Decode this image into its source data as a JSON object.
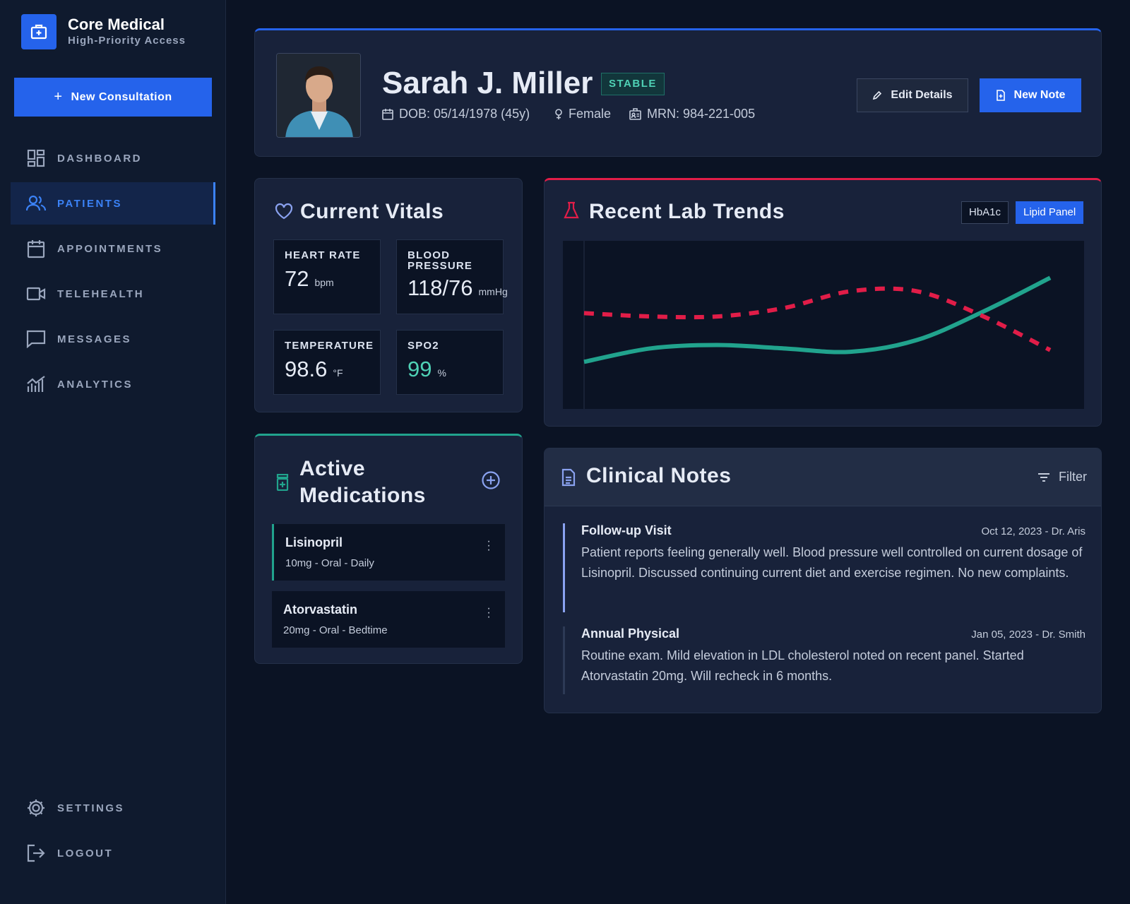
{
  "brand": {
    "title": "Core Medical",
    "subtitle": "High-Priority Access"
  },
  "sidebar": {
    "new_consultation": "New Consultation",
    "items": [
      {
        "label": "DASHBOARD",
        "icon": "dashboard-icon"
      },
      {
        "label": "PATIENTS",
        "icon": "users-icon",
        "active": true
      },
      {
        "label": "APPOINTMENTS",
        "icon": "calendar-icon"
      },
      {
        "label": "TELEHEALTH",
        "icon": "video-icon"
      },
      {
        "label": "MESSAGES",
        "icon": "message-icon"
      },
      {
        "label": "ANALYTICS",
        "icon": "analytics-icon"
      }
    ],
    "bottom": [
      {
        "label": "SETTINGS",
        "icon": "gear-icon"
      },
      {
        "label": "LOGOUT",
        "icon": "logout-icon"
      }
    ]
  },
  "patient": {
    "name": "Sarah J. Miller",
    "status": "STABLE",
    "dob": "DOB: 05/14/1978 (45y)",
    "gender": "Female",
    "mrn": "MRN: 984-221-005"
  },
  "actions": {
    "edit": "Edit Details",
    "new_note": "New Note"
  },
  "vitals": {
    "title": "Current Vitals",
    "heart_rate": {
      "label": "HEART RATE",
      "value": "72",
      "unit": "bpm"
    },
    "blood_pressure": {
      "label_line1": "BLOOD",
      "label_line2": "PRESSURE",
      "value": "118/76",
      "unit": "mmHg"
    },
    "temperature": {
      "label": "TEMPERATURE",
      "value": "98.6",
      "unit": "°F"
    },
    "spo2": {
      "label": "SPO2",
      "value": "99",
      "unit": "%"
    }
  },
  "medications": {
    "title_line1": "Active",
    "title_line2": "Medications",
    "items": [
      {
        "name": "Lisinopril",
        "detail": "10mg - Oral - Daily"
      },
      {
        "name": "Atorvastatin",
        "detail": "20mg - Oral - Bedtime"
      }
    ]
  },
  "labs": {
    "title": "Recent Lab Trends",
    "tabs": [
      {
        "label": "HbA1c"
      },
      {
        "label": "Lipid Panel",
        "active": true
      }
    ]
  },
  "chart_data": {
    "type": "line",
    "title": "",
    "xlabel": "",
    "ylabel": "",
    "grid": false,
    "series": [
      {
        "color": "#21a38d",
        "style": "solid",
        "values": [
          0.28,
          0.36,
          0.38,
          0.36,
          0.34,
          0.41,
          0.58,
          0.78
        ]
      },
      {
        "color": "#e11d48",
        "style": "dashed",
        "values": [
          0.57,
          0.55,
          0.55,
          0.6,
          0.7,
          0.7,
          0.55,
          0.35
        ]
      }
    ],
    "colors": {
      "accent": "#2563eb",
      "teal": "#21a38d",
      "red": "#e11d48"
    }
  },
  "notes": {
    "title": "Clinical Notes",
    "filter": "Filter",
    "items": [
      {
        "title": "Follow-up Visit",
        "date": "Oct 12, 2023 - Dr. Aris",
        "body": "Patient reports feeling generally well. Blood pressure well controlled on current dosage of Lisinopril. Discussed continuing current diet and exercise regimen. No new complaints."
      },
      {
        "title": "Annual Physical",
        "date": "Jan 05, 2023 - Dr. Smith",
        "body": "Routine exam. Mild elevation in LDL cholesterol noted on recent panel. Started Atorvastatin 20mg. Will recheck in 6 months."
      }
    ]
  }
}
